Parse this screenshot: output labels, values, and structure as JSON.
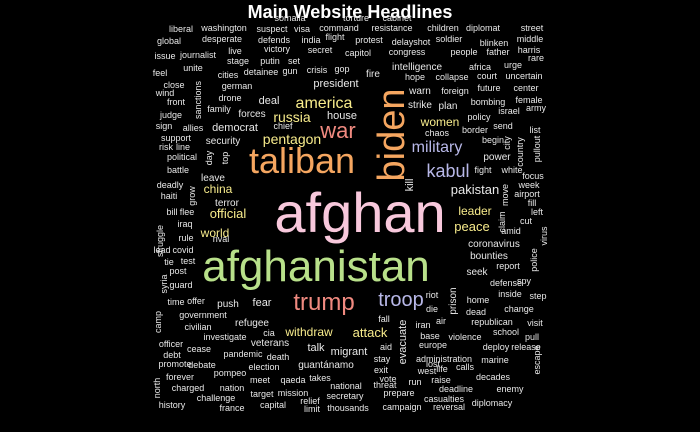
{
  "chart_data": {
    "type": "wordcloud",
    "title": "Main Website Headlines",
    "palette": {
      "light_pink": "#f8c8dc",
      "light_green": "#b8e08a",
      "orange": "#f5a660",
      "salmon": "#f08a80",
      "yellow": "#f8ec8c",
      "lavender": "#b8b8e8",
      "white": "#e8e8e8",
      "light_blue": "#a8d8e8",
      "grey": "#c8c8c8"
    },
    "words": [
      {
        "text": "afghan",
        "color": "#f8c8dc"
      },
      {
        "text": "afghanistan",
        "color": "#b8e08a"
      },
      {
        "text": "taliban",
        "color": "#f5a660"
      },
      {
        "text": "biden",
        "color": "#f5a660"
      },
      {
        "text": "trump",
        "color": "#f08a80"
      },
      {
        "text": "war",
        "color": "#f08a80"
      },
      {
        "text": "kabul",
        "color": "#b8b8e8"
      },
      {
        "text": "troop",
        "color": "#b8b8e8"
      },
      {
        "text": "military",
        "color": "#b8b8e8"
      },
      {
        "text": "america",
        "color": "#f8ec8c"
      },
      {
        "text": "pentagon",
        "color": "#f8ec8c"
      },
      {
        "text": "women",
        "color": "#f8ec8c"
      },
      {
        "text": "peace",
        "color": "#f8ec8c"
      },
      {
        "text": "leader",
        "color": "#f8ec8c"
      },
      {
        "text": "russia",
        "color": "#f8ec8c"
      },
      {
        "text": "official",
        "color": "#f8ec8c"
      },
      {
        "text": "withdraw",
        "color": "#f8ec8c"
      },
      {
        "text": "attack",
        "color": "#f8ec8c"
      },
      {
        "text": "world",
        "color": "#f8ec8c"
      },
      {
        "text": "china",
        "color": "#f8ec8c"
      },
      {
        "text": "pakistan",
        "color": "#e8e8e8"
      },
      {
        "text": "house",
        "color": "#e8e8e8"
      },
      {
        "text": "democrat",
        "color": "#e8e8e8"
      },
      {
        "text": "security",
        "color": "#e8e8e8"
      },
      {
        "text": "power",
        "color": "#e8e8e8"
      },
      {
        "text": "fear",
        "color": "#e8e8e8"
      },
      {
        "text": "refugee",
        "color": "#e8e8e8"
      },
      {
        "text": "talk",
        "color": "#e8e8e8"
      },
      {
        "text": "migrant",
        "color": "#e8e8e8"
      },
      {
        "text": "kill",
        "color": "#e8e8e8"
      },
      {
        "text": "evacuate",
        "color": "#e8e8e8"
      },
      {
        "text": "prison",
        "color": "#e8e8e8"
      },
      {
        "text": "president",
        "color": "#e8e8e8"
      },
      {
        "text": "forces",
        "color": "#e8e8e8"
      },
      {
        "text": "deal",
        "color": "#e8e8e8"
      },
      {
        "text": "intelligence",
        "color": "#e8e8e8"
      },
      {
        "text": "warn",
        "color": "#e8e8e8"
      },
      {
        "text": "strike",
        "color": "#e8e8e8"
      },
      {
        "text": "plan",
        "color": "#e8e8e8"
      },
      {
        "text": "coronavirus",
        "color": "#e8e8e8"
      },
      {
        "text": "bounties",
        "color": "#e8e8e8"
      },
      {
        "text": "seek",
        "color": "#e8e8e8"
      },
      {
        "text": "defense",
        "color": "#e8e8e8"
      },
      {
        "text": "home",
        "color": "#e8e8e8"
      },
      {
        "text": "dead",
        "color": "#e8e8e8"
      },
      {
        "text": "die",
        "color": "#e8e8e8"
      },
      {
        "text": "iran",
        "color": "#e8e8e8"
      },
      {
        "text": "base",
        "color": "#e8e8e8"
      },
      {
        "text": "europe",
        "color": "#e8e8e8"
      },
      {
        "text": "west",
        "color": "#e8e8e8"
      },
      {
        "text": "aid",
        "color": "#e8e8e8"
      },
      {
        "text": "stay",
        "color": "#e8e8e8"
      },
      {
        "text": "vote",
        "color": "#e8e8e8"
      },
      {
        "text": "guantánamo",
        "color": "#e8e8e8"
      },
      {
        "text": "veterans",
        "color": "#e8e8e8"
      },
      {
        "text": "push",
        "color": "#e8e8e8"
      },
      {
        "text": "terror",
        "color": "#e8e8e8"
      },
      {
        "text": "leave",
        "color": "#e8e8e8"
      },
      {
        "text": "fire",
        "color": "#e8e8e8"
      },
      {
        "text": "gop",
        "color": "#e8e8e8"
      },
      {
        "text": "crisis",
        "color": "#e8e8e8"
      },
      {
        "text": "collapse",
        "color": "#e8e8e8"
      },
      {
        "text": "foreign",
        "color": "#e8e8e8"
      },
      {
        "text": "bombing",
        "color": "#e8e8e8"
      },
      {
        "text": "chaos",
        "color": "#e8e8e8"
      },
      {
        "text": "border",
        "color": "#e8e8e8"
      },
      {
        "text": "fight",
        "color": "#e8e8e8"
      },
      {
        "text": "white",
        "color": "#e8e8e8"
      },
      {
        "text": "republican",
        "color": "#e8e8e8"
      },
      {
        "text": "violence",
        "color": "#e8e8e8"
      },
      {
        "text": "administration",
        "color": "#e8e8e8"
      },
      {
        "text": "life",
        "color": "#e8e8e8"
      },
      {
        "text": "deploy",
        "color": "#e8e8e8"
      },
      {
        "text": "release",
        "color": "#e8e8e8"
      },
      {
        "text": "marine",
        "color": "#e8e8e8"
      },
      {
        "text": "escape",
        "color": "#e8e8e8"
      },
      {
        "text": "pull",
        "color": "#e8e8e8"
      },
      {
        "text": "school",
        "color": "#e8e8e8"
      },
      {
        "text": "decades",
        "color": "#e8e8e8"
      },
      {
        "text": "enemy",
        "color": "#e8e8e8"
      },
      {
        "text": "deadline",
        "color": "#e8e8e8"
      },
      {
        "text": "casualties",
        "color": "#e8e8e8"
      },
      {
        "text": "reversal",
        "color": "#e8e8e8"
      },
      {
        "text": "diplomacy",
        "color": "#e8e8e8"
      },
      {
        "text": "campaign",
        "color": "#e8e8e8"
      },
      {
        "text": "prepare",
        "color": "#e8e8e8"
      },
      {
        "text": "thousands",
        "color": "#e8e8e8"
      },
      {
        "text": "secretary",
        "color": "#e8e8e8"
      },
      {
        "text": "national",
        "color": "#e8e8e8"
      },
      {
        "text": "threat",
        "color": "#e8e8e8"
      },
      {
        "text": "run",
        "color": "#e8e8e8"
      },
      {
        "text": "raise",
        "color": "#e8e8e8"
      },
      {
        "text": "calls",
        "color": "#e8e8e8"
      },
      {
        "text": "lost",
        "color": "#e8e8e8"
      },
      {
        "text": "exit",
        "color": "#e8e8e8"
      },
      {
        "text": "takes",
        "color": "#e8e8e8"
      },
      {
        "text": "qaeda",
        "color": "#e8e8e8"
      },
      {
        "text": "meet",
        "color": "#e8e8e8"
      },
      {
        "text": "election",
        "color": "#e8e8e8"
      },
      {
        "text": "death",
        "color": "#e8e8e8"
      },
      {
        "text": "pandemic",
        "color": "#e8e8e8"
      },
      {
        "text": "investigate",
        "color": "#e8e8e8"
      },
      {
        "text": "cia",
        "color": "#e8e8e8"
      },
      {
        "text": "government",
        "color": "#e8e8e8"
      },
      {
        "text": "civilian",
        "color": "#e8e8e8"
      },
      {
        "text": "officer",
        "color": "#e8e8e8"
      },
      {
        "text": "cease",
        "color": "#e8e8e8"
      },
      {
        "text": "debate",
        "color": "#e8e8e8"
      },
      {
        "text": "promote",
        "color": "#e8e8e8"
      },
      {
        "text": "debt",
        "color": "#e8e8e8"
      },
      {
        "text": "forever",
        "color": "#e8e8e8"
      },
      {
        "text": "charged",
        "color": "#e8e8e8"
      },
      {
        "text": "pompeo",
        "color": "#e8e8e8"
      },
      {
        "text": "nation",
        "color": "#e8e8e8"
      },
      {
        "text": "target",
        "color": "#e8e8e8"
      },
      {
        "text": "mission",
        "color": "#e8e8e8"
      },
      {
        "text": "relief",
        "color": "#e8e8e8"
      },
      {
        "text": "history",
        "color": "#e8e8e8"
      },
      {
        "text": "challenge",
        "color": "#e8e8e8"
      },
      {
        "text": "france",
        "color": "#e8e8e8"
      },
      {
        "text": "capital",
        "color": "#e8e8e8"
      },
      {
        "text": "limit",
        "color": "#e8e8e8"
      },
      {
        "text": "time",
        "color": "#e8e8e8"
      },
      {
        "text": "offer",
        "color": "#e8e8e8"
      },
      {
        "text": "fall",
        "color": "#e8e8e8"
      },
      {
        "text": "riot",
        "color": "#e8e8e8"
      },
      {
        "text": "air",
        "color": "#e8e8e8"
      },
      {
        "text": "step",
        "color": "#e8e8e8"
      },
      {
        "text": "inside",
        "color": "#e8e8e8"
      },
      {
        "text": "change",
        "color": "#e8e8e8"
      },
      {
        "text": "visit",
        "color": "#e8e8e8"
      },
      {
        "text": "spy",
        "color": "#e8e8e8"
      },
      {
        "text": "report",
        "color": "#e8e8e8"
      },
      {
        "text": "police",
        "color": "#e8e8e8"
      },
      {
        "text": "virus",
        "color": "#e8e8e8"
      },
      {
        "text": "amid",
        "color": "#e8e8e8"
      },
      {
        "text": "claim",
        "color": "#e8e8e8"
      },
      {
        "text": "cut",
        "color": "#e8e8e8"
      },
      {
        "text": "left",
        "color": "#e8e8e8"
      },
      {
        "text": "fill",
        "color": "#e8e8e8"
      },
      {
        "text": "airport",
        "color": "#e8e8e8"
      },
      {
        "text": "week",
        "color": "#e8e8e8"
      },
      {
        "text": "focus",
        "color": "#e8e8e8"
      },
      {
        "text": "move",
        "color": "#e8e8e8"
      },
      {
        "text": "country",
        "color": "#e8e8e8"
      },
      {
        "text": "pullout",
        "color": "#e8e8e8"
      },
      {
        "text": "list",
        "color": "#e8e8e8"
      },
      {
        "text": "city",
        "color": "#e8e8e8"
      },
      {
        "text": "begin",
        "color": "#e8e8e8"
      },
      {
        "text": "send",
        "color": "#e8e8e8"
      },
      {
        "text": "policy",
        "color": "#e8e8e8"
      },
      {
        "text": "israel",
        "color": "#e8e8e8"
      },
      {
        "text": "army",
        "color": "#e8e8e8"
      },
      {
        "text": "female",
        "color": "#e8e8e8"
      },
      {
        "text": "center",
        "color": "#e8e8e8"
      },
      {
        "text": "uncertain",
        "color": "#e8e8e8"
      },
      {
        "text": "court",
        "color": "#e8e8e8"
      },
      {
        "text": "future",
        "color": "#e8e8e8"
      },
      {
        "text": "africa",
        "color": "#e8e8e8"
      },
      {
        "text": "urge",
        "color": "#e8e8e8"
      },
      {
        "text": "rare",
        "color": "#e8e8e8"
      },
      {
        "text": "harris",
        "color": "#e8e8e8"
      },
      {
        "text": "father",
        "color": "#e8e8e8"
      },
      {
        "text": "people",
        "color": "#e8e8e8"
      },
      {
        "text": "blinken",
        "color": "#e8e8e8"
      },
      {
        "text": "middle",
        "color": "#e8e8e8"
      },
      {
        "text": "street",
        "color": "#e8e8e8"
      },
      {
        "text": "diplomat",
        "color": "#e8e8e8"
      },
      {
        "text": "children",
        "color": "#e8e8e8"
      },
      {
        "text": "soldier",
        "color": "#e8e8e8"
      },
      {
        "text": "delayshot",
        "color": "#e8e8e8"
      },
      {
        "text": "resistance",
        "color": "#e8e8e8"
      },
      {
        "text": "cabinet",
        "color": "#e8e8e8"
      },
      {
        "text": "torture",
        "color": "#e8e8e8"
      },
      {
        "text": "command",
        "color": "#e8e8e8"
      },
      {
        "text": "protest",
        "color": "#e8e8e8"
      },
      {
        "text": "flight",
        "color": "#e8e8e8"
      },
      {
        "text": "secret",
        "color": "#e8e8e8"
      },
      {
        "text": "capitol",
        "color": "#e8e8e8"
      },
      {
        "text": "congress",
        "color": "#e8e8e8"
      },
      {
        "text": "hope",
        "color": "#e8e8e8"
      },
      {
        "text": "somalia",
        "color": "#e8e8e8"
      },
      {
        "text": "visa",
        "color": "#e8e8e8"
      },
      {
        "text": "suspect",
        "color": "#e8e8e8"
      },
      {
        "text": "india",
        "color": "#e8e8e8"
      },
      {
        "text": "defends",
        "color": "#e8e8e8"
      },
      {
        "text": "victory",
        "color": "#e8e8e8"
      },
      {
        "text": "putin",
        "color": "#e8e8e8"
      },
      {
        "text": "set",
        "color": "#e8e8e8"
      },
      {
        "text": "gun",
        "color": "#e8e8e8"
      },
      {
        "text": "detainee",
        "color": "#e8e8e8"
      },
      {
        "text": "german",
        "color": "#e8e8e8"
      },
      {
        "text": "drone",
        "color": "#e8e8e8"
      },
      {
        "text": "family",
        "color": "#e8e8e8"
      },
      {
        "text": "chief",
        "color": "#e8e8e8"
      },
      {
        "text": "washington",
        "color": "#e8e8e8"
      },
      {
        "text": "desperate",
        "color": "#e8e8e8"
      },
      {
        "text": "live",
        "color": "#e8e8e8"
      },
      {
        "text": "stage",
        "color": "#e8e8e8"
      },
      {
        "text": "cities",
        "color": "#e8e8e8"
      },
      {
        "text": "liberal",
        "color": "#e8e8e8"
      },
      {
        "text": "global",
        "color": "#e8e8e8"
      },
      {
        "text": "issue",
        "color": "#e8e8e8"
      },
      {
        "text": "journalist",
        "color": "#e8e8e8"
      },
      {
        "text": "unite",
        "color": "#e8e8e8"
      },
      {
        "text": "feel",
        "color": "#e8e8e8"
      },
      {
        "text": "close",
        "color": "#e8e8e8"
      },
      {
        "text": "wind",
        "color": "#e8e8e8"
      },
      {
        "text": "front",
        "color": "#e8e8e8"
      },
      {
        "text": "judge",
        "color": "#e8e8e8"
      },
      {
        "text": "sign",
        "color": "#e8e8e8"
      },
      {
        "text": "allies",
        "color": "#e8e8e8"
      },
      {
        "text": "support",
        "color": "#e8e8e8"
      },
      {
        "text": "risk",
        "color": "#e8e8e8"
      },
      {
        "text": "line",
        "color": "#e8e8e8"
      },
      {
        "text": "political",
        "color": "#e8e8e8"
      },
      {
        "text": "battle",
        "color": "#e8e8e8"
      },
      {
        "text": "deadly",
        "color": "#e8e8e8"
      },
      {
        "text": "haiti",
        "color": "#e8e8e8"
      },
      {
        "text": "bill",
        "color": "#e8e8e8"
      },
      {
        "text": "flee",
        "color": "#e8e8e8"
      },
      {
        "text": "iraq",
        "color": "#e8e8e8"
      },
      {
        "text": "rule",
        "color": "#e8e8e8"
      },
      {
        "text": "lead",
        "color": "#e8e8e8"
      },
      {
        "text": "covid",
        "color": "#e8e8e8"
      },
      {
        "text": "tie",
        "color": "#e8e8e8"
      },
      {
        "text": "post",
        "color": "#e8e8e8"
      },
      {
        "text": "test",
        "color": "#e8e8e8"
      },
      {
        "text": "guard",
        "color": "#e8e8e8"
      },
      {
        "text": "rival",
        "color": "#e8e8e8"
      },
      {
        "text": "sanctions",
        "color": "#e8e8e8"
      },
      {
        "text": "day",
        "color": "#e8e8e8"
      },
      {
        "text": "top",
        "color": "#e8e8e8"
      },
      {
        "text": "grow",
        "color": "#e8e8e8"
      },
      {
        "text": "struggle",
        "color": "#e8e8e8"
      },
      {
        "text": "syria",
        "color": "#e8e8e8"
      },
      {
        "text": "camp",
        "color": "#e8e8e8"
      },
      {
        "text": "north",
        "color": "#e8e8e8"
      }
    ]
  }
}
